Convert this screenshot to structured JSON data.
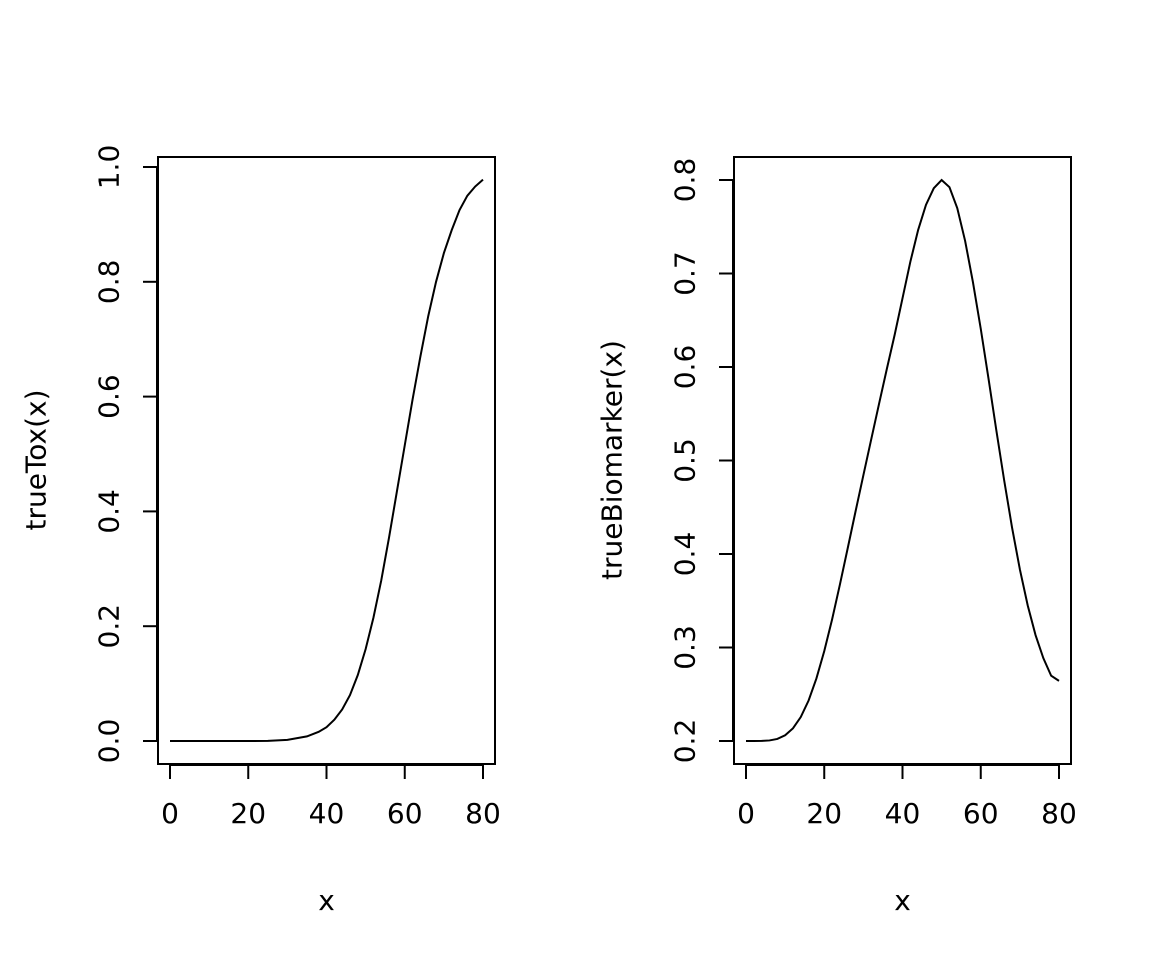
{
  "chart_data": [
    {
      "type": "line",
      "xlabel": "x",
      "ylabel": "trueTox(x)",
      "xlim": [
        0,
        80
      ],
      "ylim": [
        0,
        1
      ],
      "xticks": [
        "0",
        "20",
        "40",
        "60",
        "80"
      ],
      "yticks": [
        "0.0",
        "0.2",
        "0.4",
        "0.6",
        "0.8",
        "1.0"
      ],
      "grid": false,
      "series": [
        {
          "x": [
            0,
            5,
            10,
            15,
            20,
            25,
            30,
            35,
            38,
            40,
            42,
            44,
            46,
            48,
            50,
            52,
            54,
            56,
            58,
            60,
            62,
            64,
            66,
            68,
            70,
            72,
            74,
            76,
            78,
            80
          ],
          "y": [
            0.0,
            0.0,
            0.0,
            0.0,
            0.0,
            0.0003,
            0.002,
            0.008,
            0.016,
            0.024,
            0.037,
            0.055,
            0.08,
            0.115,
            0.16,
            0.215,
            0.28,
            0.355,
            0.435,
            0.515,
            0.595,
            0.67,
            0.74,
            0.8,
            0.85,
            0.89,
            0.925,
            0.95,
            0.966,
            0.978
          ]
        }
      ]
    },
    {
      "type": "line",
      "xlabel": "x",
      "ylabel": "trueBiomarker(x)",
      "xlim": [
        0,
        80
      ],
      "ylim": [
        0.2,
        0.8
      ],
      "xticks": [
        "0",
        "20",
        "40",
        "60",
        "80"
      ],
      "yticks": [
        "0.2",
        "0.3",
        "0.4",
        "0.5",
        "0.6",
        "0.7",
        "0.8"
      ],
      "grid": false,
      "series": [
        {
          "x": [
            0,
            2,
            4,
            6,
            8,
            10,
            12,
            14,
            16,
            18,
            20,
            22,
            24,
            26,
            28,
            30,
            32,
            34,
            36,
            38,
            40,
            42,
            44,
            46,
            48,
            50,
            52,
            54,
            56,
            58,
            60,
            62,
            64,
            66,
            68,
            70,
            72,
            74,
            76,
            78,
            80
          ],
          "y": [
            0.2,
            0.2,
            0.2001,
            0.2006,
            0.2022,
            0.2061,
            0.2135,
            0.2256,
            0.2433,
            0.2669,
            0.2961,
            0.33,
            0.3673,
            0.4063,
            0.4456,
            0.4843,
            0.5225,
            0.5605,
            0.598,
            0.6345,
            0.6735,
            0.7125,
            0.7466,
            0.7734,
            0.7912,
            0.8,
            0.7923,
            0.7699,
            0.735,
            0.6909,
            0.6409,
            0.5871,
            0.5318,
            0.4785,
            0.4283,
            0.3835,
            0.3451,
            0.3133,
            0.2886,
            0.2698,
            0.2643
          ]
        }
      ]
    }
  ]
}
